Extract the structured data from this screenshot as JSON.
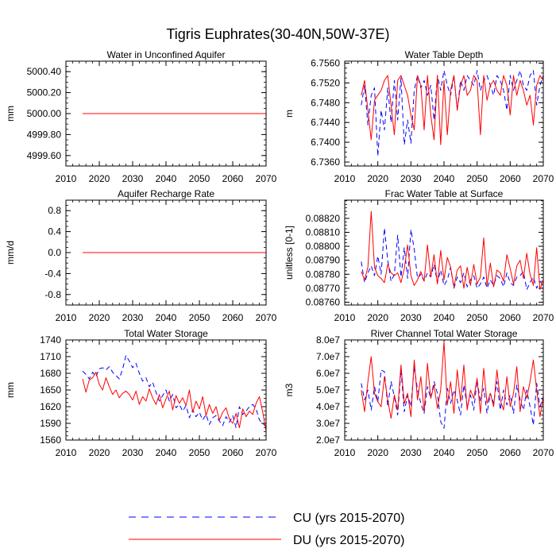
{
  "figure": {
    "title": "Tigris Euphrates(30-40N,50W-37E)"
  },
  "legend": {
    "entries": [
      {
        "label": "CU (yrs 2015-2070)",
        "color": "#0000ff",
        "dash": "dashed"
      },
      {
        "label": "DU (yrs 2015-2070)",
        "color": "#ff0000",
        "dash": "solid"
      }
    ]
  },
  "chart_data": [
    {
      "type": "line",
      "title": "Water in Unconfined Aquifer",
      "ylabel": "mm",
      "xlim": [
        2010,
        2070
      ],
      "ylim": [
        4999.5,
        5000.5
      ],
      "xticks": [
        2010,
        2020,
        2030,
        2040,
        2050,
        2060,
        2070
      ],
      "xtick_labels": [
        "2010",
        "2020",
        "2030",
        "2040",
        "2050",
        "2060",
        "2070"
      ],
      "yticks": [
        4999.6,
        4999.8,
        5000.0,
        5000.2,
        5000.4
      ],
      "ytick_labels": [
        "4999.60",
        "4999.80",
        "5000.00",
        "5000.20",
        "5000.40"
      ],
      "x": [
        2015,
        2070
      ],
      "series": [
        {
          "name": "CU",
          "color": "#0000ff",
          "dash": "dashed",
          "values": [
            5000.0,
            5000.0
          ]
        },
        {
          "name": "DU",
          "color": "#ff0000",
          "dash": "solid",
          "values": [
            5000.0,
            5000.0
          ]
        }
      ]
    },
    {
      "type": "line",
      "title": "Water Table Depth",
      "ylabel": "m",
      "xlim": [
        2010,
        2070
      ],
      "ylim": [
        6.7352,
        6.7564
      ],
      "xticks": [
        2010,
        2020,
        2030,
        2040,
        2050,
        2060,
        2070
      ],
      "xtick_labels": [
        "2010",
        "2020",
        "2030",
        "2040",
        "2050",
        "2060",
        "2070"
      ],
      "yticks": [
        6.736,
        6.74,
        6.744,
        6.748,
        6.752,
        6.756
      ],
      "ytick_labels": [
        "6.7360",
        "6.7400",
        "6.7440",
        "6.7480",
        "6.7520",
        "6.7560"
      ],
      "x": [
        2015,
        2016,
        2017,
        2018,
        2019,
        2020,
        2021,
        2022,
        2023,
        2024,
        2025,
        2026,
        2027,
        2028,
        2029,
        2030,
        2031,
        2032,
        2033,
        2034,
        2035,
        2036,
        2037,
        2038,
        2039,
        2040,
        2041,
        2042,
        2043,
        2044,
        2045,
        2046,
        2047,
        2048,
        2049,
        2050,
        2051,
        2052,
        2053,
        2054,
        2055,
        2056,
        2057,
        2058,
        2059,
        2060,
        2061,
        2062,
        2063,
        2064,
        2065,
        2066,
        2067,
        2068,
        2069,
        2070
      ],
      "series": [
        {
          "name": "CU",
          "color": "#0000ff",
          "dash": "dashed",
          "values": [
            6.7475,
            6.7515,
            6.7435,
            6.7495,
            6.751,
            6.7372,
            6.7465,
            6.7425,
            6.751,
            6.744,
            6.7525,
            6.7445,
            6.753,
            6.7395,
            6.7445,
            6.7398,
            6.7505,
            6.7535,
            6.751,
            6.7525,
            6.7495,
            6.7515,
            6.7445,
            6.7535,
            6.7505,
            6.7545,
            6.7515,
            6.7495,
            6.7535,
            6.7465,
            6.7525,
            6.7505,
            6.7535,
            6.7525,
            6.7515,
            6.7545,
            6.7505,
            6.7525,
            6.7535,
            6.7515,
            6.7495,
            6.7535,
            6.7525,
            6.7505,
            6.7465,
            6.7535,
            6.7505,
            6.7525,
            6.7545,
            6.7515,
            6.7505,
            6.7535,
            6.7545,
            6.7475,
            6.7515,
            6.7535
          ]
        },
        {
          "name": "DU",
          "color": "#ff0000",
          "dash": "solid",
          "values": [
            6.7495,
            6.7525,
            6.7465,
            6.7405,
            6.7485,
            6.7495,
            6.7505,
            6.7525,
            6.7535,
            6.7475,
            6.7415,
            6.7525,
            6.7535,
            6.7515,
            6.7495,
            6.7455,
            6.7425,
            6.7535,
            6.7515,
            6.7425,
            6.7535,
            6.7455,
            6.7405,
            6.7535,
            6.7395,
            6.7525,
            6.7415,
            6.7505,
            6.7535,
            6.7465,
            6.7515,
            6.7535,
            6.7495,
            6.7505,
            6.7535,
            6.7525,
            6.7415,
            6.7535,
            6.7485,
            6.7515,
            6.7525,
            6.7505,
            6.7495,
            6.7535,
            6.7515,
            6.7455,
            6.7535,
            6.7495,
            6.7525,
            6.7505,
            6.7475,
            6.7495,
            6.7435,
            6.7515,
            6.7535,
            6.7525
          ]
        }
      ]
    },
    {
      "type": "line",
      "title": "Aquifer Recharge Rate",
      "ylabel": "mm/d",
      "xlim": [
        2010,
        2070
      ],
      "ylim": [
        -1.0,
        1.0
      ],
      "xticks": [
        2010,
        2020,
        2030,
        2040,
        2050,
        2060,
        2070
      ],
      "xtick_labels": [
        "2010",
        "2020",
        "2030",
        "2040",
        "2050",
        "2060",
        "2070"
      ],
      "yticks": [
        -0.8,
        -0.4,
        0.0,
        0.4,
        0.8
      ],
      "ytick_labels": [
        "-0.8",
        "-0.4",
        "0.0",
        "0.4",
        "0.8"
      ],
      "x": [
        2015,
        2070
      ],
      "series": [
        {
          "name": "CU",
          "color": "#0000ff",
          "dash": "dashed",
          "values": [
            0.0,
            0.0
          ]
        },
        {
          "name": "DU",
          "color": "#ff0000",
          "dash": "solid",
          "values": [
            0.0,
            0.0
          ]
        }
      ]
    },
    {
      "type": "line",
      "title": "Frac Water Table at Surface",
      "ylabel": "unitless [0-1]",
      "xlim": [
        2010,
        2070
      ],
      "ylim": [
        0.08758,
        0.08833
      ],
      "xticks": [
        2010,
        2020,
        2030,
        2040,
        2050,
        2060,
        2070
      ],
      "xtick_labels": [
        "2010",
        "2020",
        "2030",
        "2040",
        "2050",
        "2060",
        "2070"
      ],
      "yticks": [
        0.0876,
        0.0877,
        0.0878,
        0.0879,
        0.088,
        0.0881,
        0.0882
      ],
      "ytick_labels": [
        "0.08760",
        "0.08770",
        "0.08780",
        "0.08790",
        "0.08800",
        "0.08810",
        "0.08820"
      ],
      "x": [
        2015,
        2016,
        2017,
        2018,
        2019,
        2020,
        2021,
        2022,
        2023,
        2024,
        2025,
        2026,
        2027,
        2028,
        2029,
        2030,
        2031,
        2032,
        2033,
        2034,
        2035,
        2036,
        2037,
        2038,
        2039,
        2040,
        2041,
        2042,
        2043,
        2044,
        2045,
        2046,
        2047,
        2048,
        2049,
        2050,
        2051,
        2052,
        2053,
        2054,
        2055,
        2056,
        2057,
        2058,
        2059,
        2060,
        2061,
        2062,
        2063,
        2064,
        2065,
        2066,
        2067,
        2068,
        2069,
        2070
      ],
      "series": [
        {
          "name": "CU",
          "color": "#0000ff",
          "dash": "dashed",
          "values": [
            0.08789,
            0.08774,
            0.08781,
            0.08786,
            0.08779,
            0.08793,
            0.0878,
            0.08813,
            0.0879,
            0.08775,
            0.0878,
            0.08808,
            0.08778,
            0.08799,
            0.08777,
            0.08812,
            0.08798,
            0.08777,
            0.0878,
            0.08775,
            0.08781,
            0.08778,
            0.08787,
            0.08774,
            0.08783,
            0.08772,
            0.08776,
            0.08785,
            0.0877,
            0.08778,
            0.08774,
            0.08781,
            0.08771,
            0.08776,
            0.08779,
            0.0877,
            0.08773,
            0.08778,
            0.0877,
            0.08776,
            0.08772,
            0.08779,
            0.08777,
            0.08771,
            0.08781,
            0.08774,
            0.08772,
            0.08778,
            0.08779,
            0.08782,
            0.08769,
            0.08774,
            0.08778,
            0.0877,
            0.08775,
            0.08772
          ]
        },
        {
          "name": "DU",
          "color": "#ff0000",
          "dash": "solid",
          "values": [
            0.08782,
            0.08776,
            0.08785,
            0.08825,
            0.08785,
            0.08779,
            0.08777,
            0.08774,
            0.08787,
            0.08781,
            0.08779,
            0.08781,
            0.08774,
            0.08784,
            0.08801,
            0.08779,
            0.08772,
            0.08776,
            0.08782,
            0.08775,
            0.08801,
            0.08778,
            0.08794,
            0.08773,
            0.08797,
            0.08776,
            0.08792,
            0.08785,
            0.08771,
            0.08783,
            0.08786,
            0.0877,
            0.08785,
            0.08772,
            0.08787,
            0.08773,
            0.08778,
            0.08806,
            0.08772,
            0.08788,
            0.08771,
            0.08783,
            0.08781,
            0.08775,
            0.08794,
            0.08784,
            0.08773,
            0.08786,
            0.0879,
            0.08777,
            0.08795,
            0.0878,
            0.08772,
            0.08799,
            0.08769,
            0.08776
          ]
        }
      ]
    },
    {
      "type": "line",
      "title": "Total Water Storage",
      "ylabel": "mm",
      "xlim": [
        2010,
        2070
      ],
      "ylim": [
        1560,
        1740
      ],
      "xticks": [
        2010,
        2020,
        2030,
        2040,
        2050,
        2060,
        2070
      ],
      "xtick_labels": [
        "2010",
        "2020",
        "2030",
        "2040",
        "2050",
        "2060",
        "2070"
      ],
      "yticks": [
        1560,
        1590,
        1620,
        1650,
        1680,
        1710,
        1740
      ],
      "ytick_labels": [
        "1560",
        "1590",
        "1620",
        "1650",
        "1680",
        "1710",
        "1740"
      ],
      "x": [
        2015,
        2016,
        2017,
        2018,
        2019,
        2020,
        2021,
        2022,
        2023,
        2024,
        2025,
        2026,
        2027,
        2028,
        2029,
        2030,
        2031,
        2032,
        2033,
        2034,
        2035,
        2036,
        2037,
        2038,
        2039,
        2040,
        2041,
        2042,
        2043,
        2044,
        2045,
        2046,
        2047,
        2048,
        2049,
        2050,
        2051,
        2052,
        2053,
        2054,
        2055,
        2056,
        2057,
        2058,
        2059,
        2060,
        2061,
        2062,
        2063,
        2064,
        2065,
        2066,
        2067,
        2068,
        2069,
        2070
      ],
      "series": [
        {
          "name": "CU",
          "color": "#0000ff",
          "dash": "dashed",
          "values": [
            1684,
            1678,
            1670,
            1682,
            1674,
            1688,
            1690,
            1686,
            1692,
            1682,
            1676,
            1670,
            1688,
            1712,
            1702,
            1690,
            1698,
            1680,
            1666,
            1672,
            1656,
            1664,
            1646,
            1630,
            1640,
            1650,
            1630,
            1642,
            1618,
            1624,
            1612,
            1622,
            1600,
            1614,
            1602,
            1610,
            1596,
            1606,
            1588,
            1600,
            1604,
            1594,
            1586,
            1602,
            1592,
            1604,
            1582,
            1620,
            1606,
            1612,
            1620,
            1624,
            1616,
            1596,
            1590,
            1584
          ]
        },
        {
          "name": "DU",
          "color": "#ff0000",
          "dash": "solid",
          "values": [
            1670,
            1646,
            1668,
            1672,
            1682,
            1660,
            1650,
            1672,
            1656,
            1642,
            1650,
            1636,
            1644,
            1648,
            1642,
            1632,
            1648,
            1624,
            1638,
            1630,
            1652,
            1636,
            1624,
            1642,
            1618,
            1634,
            1648,
            1614,
            1640,
            1626,
            1636,
            1622,
            1650,
            1610,
            1630,
            1616,
            1638,
            1604,
            1624,
            1608,
            1620,
            1596,
            1610,
            1618,
            1598,
            1590,
            1608,
            1582,
            1616,
            1602,
            1612,
            1606,
            1626,
            1638,
            1610,
            1576
          ]
        }
      ]
    },
    {
      "type": "line",
      "title": "River Channel Total Water Storage",
      "ylabel": "m3",
      "xlim": [
        2010,
        2070
      ],
      "ylim": [
        20000000,
        80000000
      ],
      "xticks": [
        2010,
        2020,
        2030,
        2040,
        2050,
        2060,
        2070
      ],
      "xtick_labels": [
        "2010",
        "2020",
        "2030",
        "2040",
        "2050",
        "2060",
        "2070"
      ],
      "yticks": [
        20000000,
        30000000,
        40000000,
        50000000,
        60000000,
        70000000,
        80000000
      ],
      "ytick_labels": [
        "2.0e7",
        "3.0e7",
        "4.0e7",
        "5.0e7",
        "6.0e7",
        "7.0e7",
        "8.0e7"
      ],
      "x": [
        2015,
        2016,
        2017,
        2018,
        2019,
        2020,
        2021,
        2022,
        2023,
        2024,
        2025,
        2026,
        2027,
        2028,
        2029,
        2030,
        2031,
        2032,
        2033,
        2034,
        2035,
        2036,
        2037,
        2038,
        2039,
        2040,
        2041,
        2042,
        2043,
        2044,
        2045,
        2046,
        2047,
        2048,
        2049,
        2050,
        2051,
        2052,
        2053,
        2054,
        2055,
        2056,
        2057,
        2058,
        2059,
        2060,
        2061,
        2062,
        2063,
        2064,
        2065,
        2066,
        2067,
        2068,
        2069,
        2070
      ],
      "series": [
        {
          "name": "CU",
          "color": "#0000ff",
          "dash": "dashed",
          "values": [
            54000000,
            44000000,
            50000000,
            38000000,
            52000000,
            43000000,
            62000000,
            61000000,
            40000000,
            55000000,
            46000000,
            35000000,
            62000000,
            37000000,
            47000000,
            40000000,
            64000000,
            50000000,
            42000000,
            36000000,
            52000000,
            45000000,
            55000000,
            48000000,
            31000000,
            27000000,
            51000000,
            42000000,
            50000000,
            44000000,
            35000000,
            53000000,
            40000000,
            47000000,
            38000000,
            56000000,
            43000000,
            51000000,
            36000000,
            48000000,
            42000000,
            55000000,
            38000000,
            50000000,
            41000000,
            47000000,
            36000000,
            53000000,
            44000000,
            38000000,
            50000000,
            40000000,
            29000000,
            54000000,
            40000000,
            46000000
          ]
        },
        {
          "name": "DU",
          "color": "#ff0000",
          "dash": "solid",
          "values": [
            50000000,
            37000000,
            55000000,
            70000000,
            48000000,
            43000000,
            40000000,
            58000000,
            44000000,
            33000000,
            47000000,
            38000000,
            65000000,
            42000000,
            48000000,
            34000000,
            68000000,
            44000000,
            58000000,
            37000000,
            66000000,
            45000000,
            53000000,
            39000000,
            50000000,
            79000000,
            41000000,
            55000000,
            36000000,
            62000000,
            43000000,
            65000000,
            38000000,
            50000000,
            45000000,
            57000000,
            36000000,
            63000000,
            42000000,
            48000000,
            40000000,
            62000000,
            44000000,
            38000000,
            58000000,
            40000000,
            48000000,
            64000000,
            37000000,
            52000000,
            45000000,
            55000000,
            68000000,
            50000000,
            34000000,
            46000000
          ]
        }
      ]
    }
  ]
}
